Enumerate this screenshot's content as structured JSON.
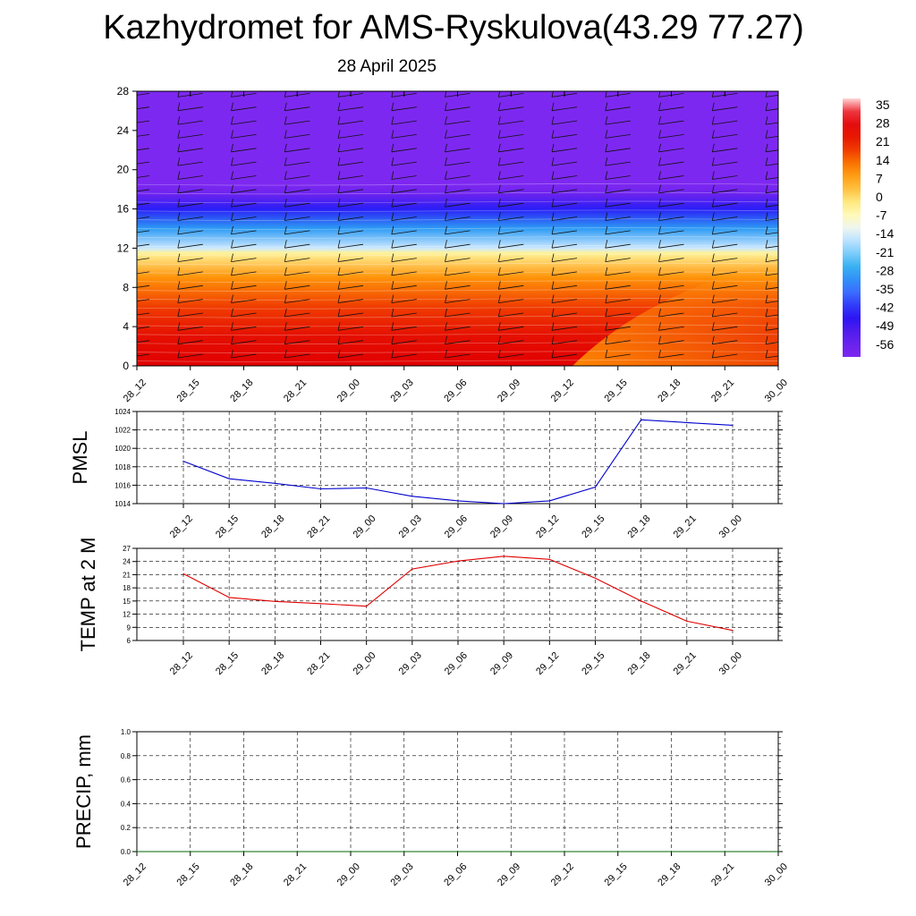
{
  "title": "Kazhydromet for AMS-Ryskulova(43.29 77.27)",
  "subtitle": "28 April 2025",
  "time_labels": [
    "28_12",
    "28_15",
    "28_18",
    "28_21",
    "29_00",
    "29_03",
    "29_06",
    "29_09",
    "29_12",
    "29_15",
    "29_18",
    "29_21",
    "30_00"
  ],
  "chart_data": [
    {
      "type": "heatmap",
      "title": "",
      "ylabel": "",
      "x": [
        "28_12",
        "28_15",
        "28_18",
        "28_21",
        "29_00",
        "29_03",
        "29_06",
        "29_09",
        "29_12",
        "29_15",
        "29_18",
        "29_21",
        "30_00"
      ],
      "yticks": [
        0,
        4,
        8,
        12,
        16,
        20,
        24,
        28
      ],
      "ylim": [
        0,
        28
      ],
      "colorbar_labels": [
        "35",
        "28",
        "21",
        "14",
        "7",
        "0",
        "-7",
        "-14",
        "-21",
        "-28",
        "-35",
        "-42",
        "-49",
        "-56"
      ],
      "colorbar_values": [
        35,
        28,
        21,
        14,
        7,
        0,
        -7,
        -14,
        -21,
        -28,
        -35,
        -42,
        -49,
        -56
      ],
      "profile_levels": [
        0,
        3,
        6,
        9,
        11.5,
        12,
        14,
        16,
        17.5,
        18.5,
        19,
        28
      ],
      "profile_temps": [
        24,
        22,
        16,
        8,
        -5,
        -16,
        -30,
        -44,
        -56,
        -60,
        -60,
        -60
      ],
      "wind_barbs": true
    },
    {
      "type": "line",
      "ylabel": "PMSL",
      "x": [
        "28_12",
        "28_15",
        "28_18",
        "28_21",
        "29_00",
        "29_03",
        "29_06",
        "29_09",
        "29_12",
        "29_15",
        "29_18",
        "29_21",
        "30_00"
      ],
      "yticks": [
        1014,
        1016,
        1018,
        1020,
        1022,
        1024
      ],
      "ylim": [
        1014,
        1024
      ],
      "grid": true,
      "series": [
        {
          "color": "#0000cc",
          "values": [
            1018.6,
            1016.7,
            1016.2,
            1015.6,
            1015.7,
            1014.8,
            1014.3,
            1014.0,
            1014.3,
            1015.8,
            1023.1,
            1022.8,
            1022.5
          ]
        }
      ]
    },
    {
      "type": "line",
      "ylabel": "TEMP at 2 M",
      "x": [
        "28_12",
        "28_15",
        "28_18",
        "28_21",
        "29_00",
        "29_03",
        "29_06",
        "29_09",
        "29_12",
        "29_15",
        "29_18",
        "29_21",
        "30_00"
      ],
      "yticks": [
        6,
        9,
        12,
        15,
        18,
        21,
        24,
        27
      ],
      "ylim": [
        6,
        27
      ],
      "grid": true,
      "series": [
        {
          "color": "#e00000",
          "values": [
            21.2,
            15.8,
            14.9,
            14.4,
            13.8,
            22.3,
            24.1,
            25.2,
            24.5,
            20.2,
            15.0,
            10.4,
            8.3
          ]
        }
      ]
    },
    {
      "type": "line",
      "ylabel": "PRECIP, mm",
      "x": [
        "28_12",
        "28_15",
        "28_18",
        "28_21",
        "29_00",
        "29_03",
        "29_06",
        "29_09",
        "29_12",
        "29_15",
        "29_18",
        "29_21",
        "30_00"
      ],
      "yticks": [
        "0.0",
        "0.2",
        "0.4",
        "0.6",
        "0.8",
        "1.0"
      ],
      "ylim": [
        0,
        1
      ],
      "grid": true,
      "series": [
        {
          "color": "#006400",
          "values": [
            0,
            0,
            0,
            0,
            0,
            0,
            0,
            0,
            0,
            0,
            0,
            0,
            0
          ]
        }
      ]
    }
  ]
}
